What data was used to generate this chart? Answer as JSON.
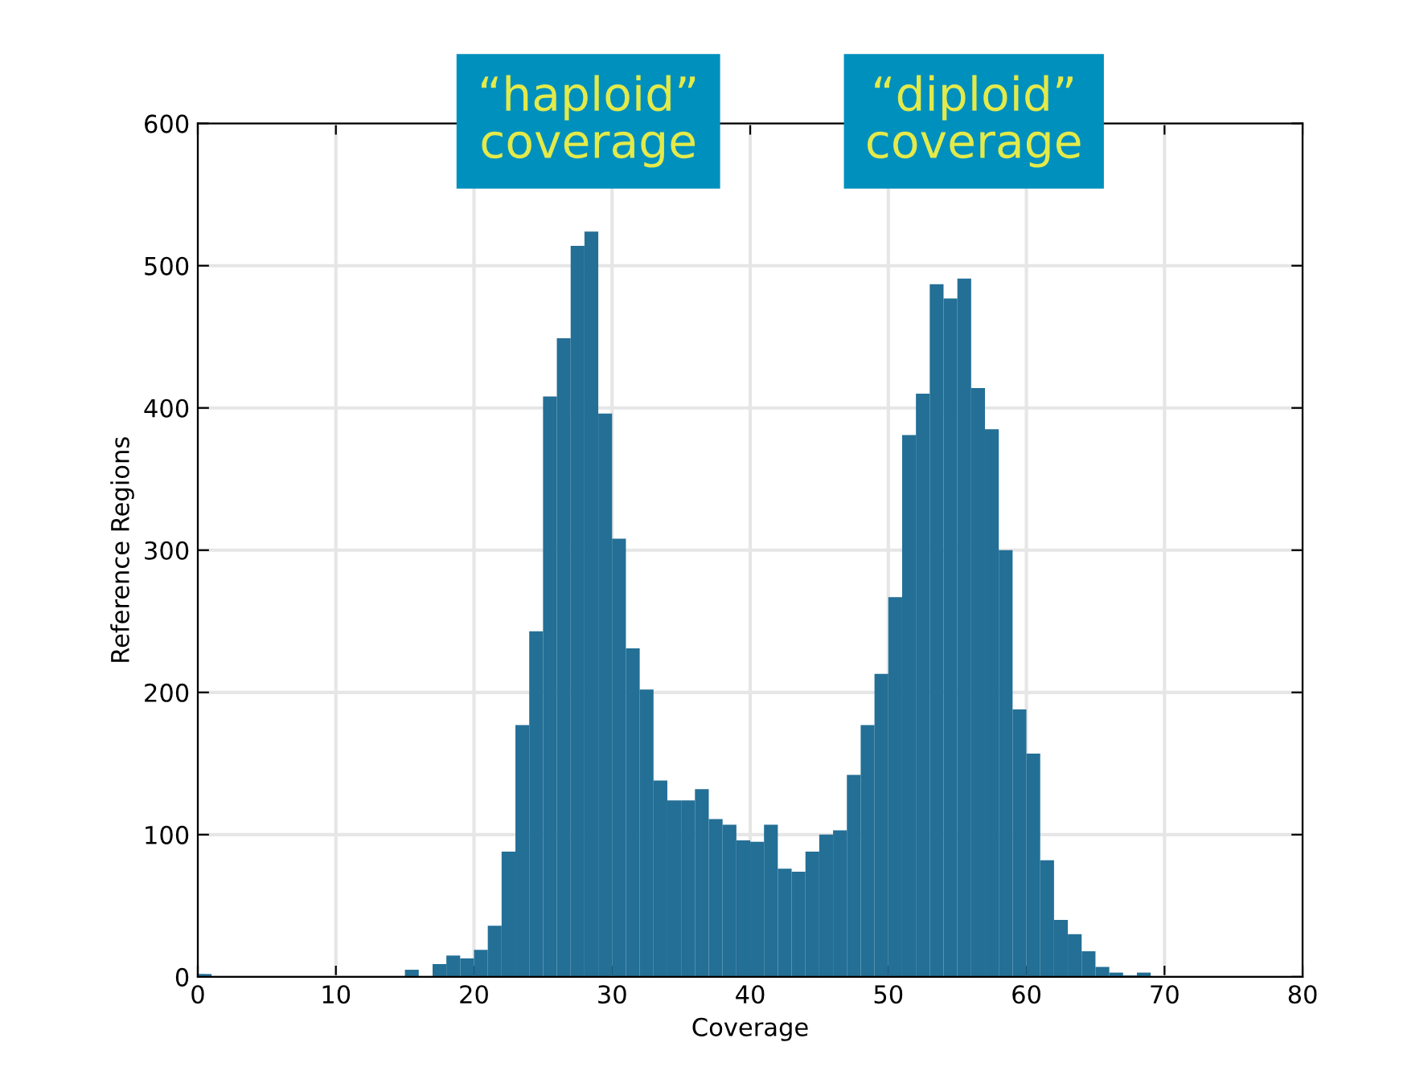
{
  "chart_data": {
    "type": "histogram",
    "xlabel": "Coverage",
    "ylabel": "Reference Regions",
    "bins": [
      0,
      1,
      2,
      3,
      4,
      5,
      6,
      7,
      8,
      9,
      10,
      11,
      12,
      13,
      14,
      15,
      16,
      17,
      18,
      19,
      20,
      21,
      22,
      23,
      24,
      25,
      26,
      27,
      28,
      29,
      30,
      31,
      32,
      33,
      34,
      35,
      36,
      37,
      38,
      39,
      40,
      41,
      42,
      43,
      44,
      45,
      46,
      47,
      48,
      49,
      50,
      51,
      52,
      53,
      54,
      55,
      56,
      57,
      58,
      59,
      60,
      61,
      62,
      63,
      64,
      65,
      66,
      67,
      68,
      69
    ],
    "values": [
      2,
      0,
      0,
      0,
      0,
      0,
      0,
      0,
      0,
      0,
      0,
      0,
      0,
      0,
      0,
      5,
      0,
      9,
      15,
      13,
      19,
      36,
      88,
      177,
      243,
      408,
      449,
      514,
      524,
      396,
      308,
      231,
      202,
      138,
      124,
      124,
      132,
      111,
      107,
      96,
      95,
      107,
      76,
      74,
      88,
      100,
      103,
      142,
      177,
      213,
      267,
      381,
      410,
      487,
      477,
      491,
      414,
      385,
      300,
      188,
      157,
      82,
      40,
      30,
      18,
      7,
      3,
      1,
      3
    ],
    "color": "#236f96",
    "xlim": [
      0,
      80
    ],
    "xticks": [
      0,
      10,
      20,
      30,
      40,
      50,
      60,
      70,
      80
    ],
    "ylim": [
      0,
      600
    ],
    "yticks": [
      0,
      100,
      200,
      300,
      400,
      500,
      600
    ],
    "grid": true,
    "annotations": [
      "“haploid”\ncoverage",
      "“diploid”\ncoverage"
    ]
  }
}
